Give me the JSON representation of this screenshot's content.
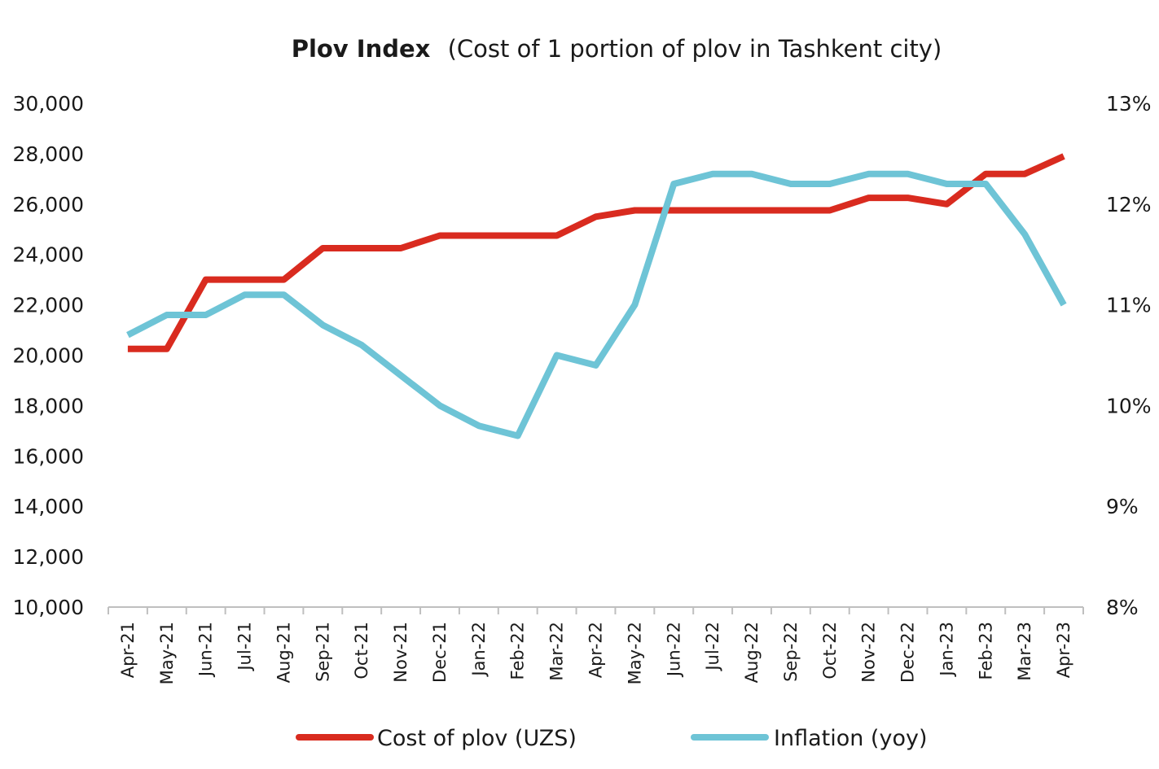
{
  "chart_data": {
    "type": "line",
    "title_bold": "Plov Index",
    "title_rest": "(Cost of 1 portion of plov in Tashkent city)",
    "categories": [
      "Apr-21",
      "May-21",
      "Jun-21",
      "Jul-21",
      "Aug-21",
      "Sep-21",
      "Oct-21",
      "Nov-21",
      "Dec-21",
      "Jan-22",
      "Feb-22",
      "Mar-22",
      "Apr-22",
      "May-22",
      "Jun-22",
      "Jul-22",
      "Aug-22",
      "Sep-22",
      "Oct-22",
      "Nov-22",
      "Dec-22",
      "Jan-23",
      "Feb-23",
      "Mar-23",
      "Apr-23"
    ],
    "y_left": {
      "min": 10000,
      "max": 30000,
      "ticks": [
        10000,
        12000,
        14000,
        16000,
        18000,
        20000,
        22000,
        24000,
        26000,
        28000,
        30000
      ],
      "tick_labels": [
        "10,000",
        "12,000",
        "14,000",
        "16,000",
        "18,000",
        "20,000",
        "22,000",
        "24,000",
        "26,000",
        "28,000",
        "30,000"
      ]
    },
    "y_right": {
      "min": 8,
      "max": 13,
      "ticks": [
        8,
        9,
        10,
        11,
        12,
        13
      ],
      "tick_labels": [
        "8%",
        "9%",
        "10%",
        "11%",
        "12%",
        "13%"
      ]
    },
    "series": [
      {
        "name": "Cost of plov (UZS)",
        "axis": "left",
        "color": "#d92b1f",
        "values": [
          20250,
          20250,
          23000,
          23000,
          23000,
          24250,
          24250,
          24250,
          24750,
          24750,
          24750,
          24750,
          25500,
          25750,
          25750,
          25750,
          25750,
          25750,
          25750,
          26250,
          26250,
          26000,
          27200,
          27200,
          27900
        ]
      },
      {
        "name": "Inflation (yoy)",
        "axis": "right",
        "color": "#6ec4d6",
        "values": [
          10.7,
          10.9,
          10.9,
          11.1,
          11.1,
          10.8,
          10.6,
          10.3,
          10.0,
          9.8,
          9.7,
          10.5,
          10.4,
          11.0,
          12.2,
          12.3,
          12.3,
          12.2,
          12.2,
          12.3,
          12.3,
          12.2,
          12.2,
          11.7,
          11.0
        ]
      }
    ]
  }
}
